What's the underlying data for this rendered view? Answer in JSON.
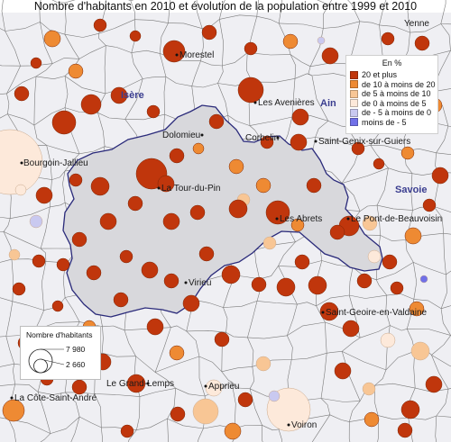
{
  "title": "Nombre d'habitants en 2010 et évolution de la population entre 1999 et 2010",
  "places": [
    {
      "name": "Yenne"
    },
    {
      "name": "Morestel"
    },
    {
      "name": "Les Avenières"
    },
    {
      "name": "Dolomieu"
    },
    {
      "name": "Corbelin"
    },
    {
      "name": "Saint-Genix-sur-Guiers"
    },
    {
      "name": "Bourgoin-Jallieu"
    },
    {
      "name": "La Tour-du-Pin"
    },
    {
      "name": "Les Abrets"
    },
    {
      "name": "Le Pont-de-Beauvoisin"
    },
    {
      "name": "Virieu"
    },
    {
      "name": "Saint-Geoire-en-Valdaine"
    },
    {
      "name": "La Côte-Saint-André"
    },
    {
      "name": "Le Grand-Lemps"
    },
    {
      "name": "Apprieu"
    },
    {
      "name": "Voiron"
    }
  ],
  "regions": [
    {
      "name": "Isère"
    },
    {
      "name": "Ain"
    },
    {
      "name": "Savoie"
    }
  ],
  "legend": {
    "title": "En %",
    "classes": [
      {
        "label": "20 et plus",
        "color": "#c0360c"
      },
      {
        "label": "de 10 à moins de 20",
        "color": "#ee8a33"
      },
      {
        "label": "de 5 à moins de 10",
        "color": "#f8c695"
      },
      {
        "label": "de 0 à moins de 5",
        "color": "#fde9da"
      },
      {
        "label": "de - 5 à moins de 0",
        "color": "#c9c9f0"
      },
      {
        "label": "moins de - 5",
        "color": "#7070e8"
      }
    ]
  },
  "size_legend": {
    "title": "Nombre d'habitants",
    "large_value": "7 980",
    "small_value": "2 660"
  }
}
